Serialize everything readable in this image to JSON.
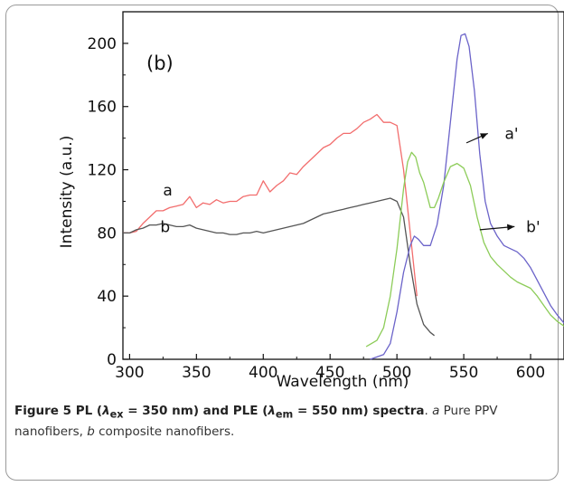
{
  "chart_data": {
    "type": "line",
    "panel_label": "(b)",
    "xlabel": "Wavelength (nm)",
    "ylabel": "Intensity (a.u.)",
    "xlim": [
      295,
      625
    ],
    "ylim": [
      0,
      220
    ],
    "xticks": [
      300,
      350,
      400,
      450,
      500,
      550,
      600
    ],
    "yticks": [
      0,
      40,
      80,
      120,
      160,
      200
    ],
    "grid": false,
    "series": [
      {
        "name": "a",
        "color": "#f26d6d",
        "x": [
          295,
          300,
          305,
          310,
          315,
          320,
          325,
          330,
          335,
          340,
          345,
          350,
          355,
          360,
          365,
          370,
          375,
          380,
          385,
          390,
          395,
          400,
          405,
          410,
          415,
          420,
          425,
          430,
          435,
          440,
          445,
          450,
          455,
          460,
          465,
          470,
          475,
          480,
          485,
          490,
          495,
          500,
          505,
          510,
          515
        ],
        "y": [
          80,
          80,
          81,
          86,
          90,
          94,
          94,
          96,
          97,
          98,
          103,
          96,
          99,
          98,
          101,
          99,
          100,
          100,
          103,
          104,
          104,
          113,
          106,
          110,
          113,
          118,
          117,
          122,
          126,
          130,
          134,
          136,
          140,
          143,
          143,
          146,
          150,
          152,
          155,
          150,
          150,
          148,
          120,
          80,
          40
        ]
      },
      {
        "name": "b",
        "color": "#555555",
        "x": [
          295,
          300,
          305,
          310,
          315,
          320,
          325,
          330,
          335,
          340,
          345,
          350,
          355,
          360,
          365,
          370,
          375,
          380,
          385,
          390,
          395,
          400,
          405,
          410,
          415,
          420,
          425,
          430,
          435,
          440,
          445,
          450,
          455,
          460,
          465,
          470,
          475,
          480,
          485,
          490,
          495,
          500,
          505,
          510,
          515,
          520,
          525,
          528
        ],
        "y": [
          80,
          80,
          82,
          83,
          85,
          85,
          86,
          85,
          84,
          84,
          85,
          83,
          82,
          81,
          80,
          80,
          79,
          79,
          80,
          80,
          81,
          80,
          81,
          82,
          83,
          84,
          85,
          86,
          88,
          90,
          92,
          93,
          94,
          95,
          96,
          97,
          98,
          99,
          100,
          101,
          102,
          100,
          90,
          60,
          35,
          22,
          17,
          15
        ]
      },
      {
        "name": "a'",
        "color": "#6b63c9",
        "x": [
          480,
          490,
          495,
          500,
          505,
          510,
          513,
          516,
          520,
          525,
          530,
          535,
          540,
          545,
          548,
          551,
          554,
          558,
          562,
          566,
          570,
          575,
          580,
          585,
          590,
          595,
          600,
          605,
          610,
          615,
          620,
          625
        ],
        "y": [
          0,
          3,
          10,
          30,
          55,
          72,
          78,
          76,
          72,
          72,
          85,
          110,
          150,
          190,
          205,
          206,
          198,
          170,
          130,
          100,
          86,
          78,
          72,
          70,
          68,
          64,
          58,
          50,
          42,
          34,
          28,
          23
        ]
      },
      {
        "name": "b'",
        "color": "#8ccc58",
        "x": [
          477,
          485,
          490,
          495,
          500,
          505,
          508,
          511,
          514,
          517,
          520,
          525,
          528,
          531,
          535,
          540,
          545,
          550,
          555,
          560,
          565,
          570,
          575,
          580,
          585,
          590,
          595,
          600,
          605,
          610,
          615,
          620,
          625
        ],
        "y": [
          8,
          12,
          20,
          40,
          70,
          108,
          125,
          131,
          128,
          118,
          112,
          96,
          96,
          102,
          112,
          122,
          124,
          121,
          110,
          90,
          74,
          65,
          60,
          56,
          52,
          49,
          47,
          45,
          40,
          34,
          28,
          24,
          21
        ]
      }
    ],
    "annotations": [
      {
        "text": "a",
        "x": 325,
        "y": 107
      },
      {
        "text": "b",
        "x": 323,
        "y": 84
      },
      {
        "text": "a'",
        "x": 578,
        "y": 143,
        "arrow_from": [
          552,
          137
        ],
        "arrow_to": [
          568,
          143
        ]
      },
      {
        "text": "b'",
        "x": 594,
        "y": 84,
        "arrow_from": [
          562,
          82
        ],
        "arrow_to": [
          588,
          84
        ]
      }
    ]
  },
  "caption": {
    "fig_number": "Figure 5",
    "text_1": " PL (",
    "lambda_1": "λ",
    "sub_1": "ex",
    "text_2": " = 350 nm) and PLE (",
    "lambda_2": "λ",
    "sub_2": "em",
    "text_3": " = 550 nm) spectra",
    "text_4": ". ",
    "label_a": "a",
    "text_5": " Pure PPV nanofibers, ",
    "label_b": "b",
    "text_6": " composite nanofibers."
  }
}
